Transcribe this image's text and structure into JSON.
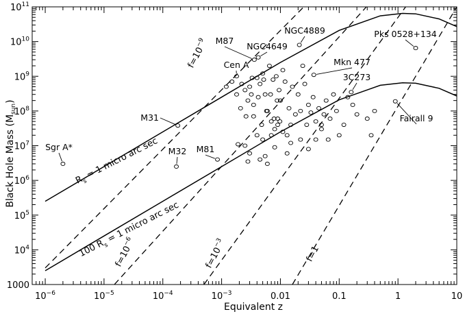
{
  "chart_data": {
    "type": "scatter",
    "xlabel": "Equivalent z",
    "ylabel": {
      "main": "Black Hole Mass (M",
      "sub": "sun",
      "end": ")"
    },
    "xscale": "log",
    "yscale": "log",
    "xlim": [
      6e-07,
      10
    ],
    "ylim": [
      1000,
      100000000000.0
    ],
    "grid": false,
    "x_ticks": [
      {
        "value": 1e-06,
        "base": "10",
        "exp": "−6"
      },
      {
        "value": 1e-05,
        "base": "10",
        "exp": "−5"
      },
      {
        "value": 0.0001,
        "base": "10",
        "exp": "−4"
      },
      {
        "value": 0.001,
        "base": "10",
        "exp": "−3"
      },
      {
        "value": 0.01,
        "text": "0.01"
      },
      {
        "value": 0.1,
        "text": "0.1"
      },
      {
        "value": 1,
        "text": "1"
      },
      {
        "value": 10,
        "text": "10"
      }
    ],
    "y_ticks": [
      {
        "value": 1000,
        "text": "1000"
      },
      {
        "value": 10000.0,
        "base": "10",
        "exp": "4"
      },
      {
        "value": 100000.0,
        "base": "10",
        "exp": "5"
      },
      {
        "value": 1000000.0,
        "base": "10",
        "exp": "6"
      },
      {
        "value": 10000000.0,
        "base": "10",
        "exp": "7"
      },
      {
        "value": 100000000.0,
        "base": "10",
        "exp": "8"
      },
      {
        "value": 1000000000.0,
        "base": "10",
        "exp": "9"
      },
      {
        "value": 10000000000.0,
        "base": "10",
        "exp": "10"
      },
      {
        "value": 100000000000.0,
        "base": "10",
        "exp": "11"
      }
    ],
    "solid_curves": [
      {
        "label_parts": [
          "R",
          "s",
          " = 1 micro arc sec"
        ],
        "points": [
          [
            1e-06,
            250000.0
          ],
          [
            1e-05,
            2500000.0
          ],
          [
            0.0001,
            25000000.0
          ],
          [
            0.001,
            250000000.0
          ],
          [
            0.01,
            2500000000.0
          ],
          [
            0.1,
            21000000000.0
          ],
          [
            0.5,
            55000000000.0
          ],
          [
            1.2,
            65000000000.0
          ],
          [
            2,
            63000000000.0
          ],
          [
            5,
            45000000000.0
          ],
          [
            10,
            27000000000.0
          ]
        ]
      },
      {
        "label_parts": [
          "100 R",
          "s",
          " = 1 micro arc sec"
        ],
        "points": [
          [
            1e-06,
            2500.0
          ],
          [
            1e-05,
            25000.0
          ],
          [
            0.0001,
            250000.0
          ],
          [
            0.001,
            2500000.0
          ],
          [
            0.01,
            25000000.0
          ],
          [
            0.1,
            210000000.0
          ],
          [
            0.5,
            550000000.0
          ],
          [
            1.2,
            650000000.0
          ],
          [
            2,
            630000000.0
          ],
          [
            5,
            450000000.0
          ],
          [
            10,
            270000000.0
          ]
        ]
      }
    ],
    "dashed_lines": [
      {
        "label": "f=10",
        "exp": "−9",
        "x0": 1e-06,
        "y0": 3000.0,
        "x1": 0.025,
        "y1": 100000000000.0
      },
      {
        "label": "f=10",
        "exp": "−6",
        "x0": 1.5e-05,
        "y0": 1000.0,
        "x1": 0.29,
        "y1": 100000000000.0
      },
      {
        "label": "f=10",
        "exp": "−3",
        "x0": 0.0005,
        "y0": 1000.0,
        "x1": 1.35,
        "y1": 100000000000.0
      },
      {
        "label": "f=1",
        "exp": "",
        "x0": 0.016,
        "y0": 1000.0,
        "x1": 10,
        "y1": 100000000000.0
      }
    ],
    "labeled_objects": [
      {
        "name": "Sgr A*",
        "x": 2e-06,
        "y": 3000000.0
      },
      {
        "name": "M31",
        "x": 0.00018,
        "y": 38000000.0
      },
      {
        "name": "M32",
        "x": 0.00017,
        "y": 2500000.0
      },
      {
        "name": "M81",
        "x": 0.00085,
        "y": 4000000.0
      },
      {
        "name": "Cen A",
        "x": 0.0018,
        "y": 1000000000.0
      },
      {
        "name": "M87",
        "x": 0.0036,
        "y": 3000000000.0
      },
      {
        "name": "NGC4649",
        "x": 0.0042,
        "y": 3500000000.0
      },
      {
        "name": "NGC4889",
        "x": 0.021,
        "y": 8000000000.0
      },
      {
        "name": "Mkn 477",
        "x": 0.037,
        "y": 1100000000.0
      },
      {
        "name": "3C273",
        "x": 0.16,
        "y": 350000000.0
      },
      {
        "name": "Pks 0528+134",
        "x": 2.0,
        "y": 6500000000.0
      },
      {
        "name": "Fairall 9",
        "x": 0.9,
        "y": 190000000.0
      }
    ],
    "points": [
      [
        0.0012,
        500000000.0
      ],
      [
        0.0015,
        700000000.0
      ],
      [
        0.0022,
        600000000.0
      ],
      [
        0.0025,
        400000000.0
      ],
      [
        0.0028,
        200000000.0
      ],
      [
        0.003,
        500000000.0
      ],
      [
        0.0032,
        300000000.0
      ],
      [
        0.0035,
        150000000.0
      ],
      [
        0.004,
        900000000.0
      ],
      [
        0.0045,
        600000000.0
      ],
      [
        0.005,
        1200000000.0
      ],
      [
        0.0055,
        300000000.0
      ],
      [
        0.006,
        100000000.0
      ],
      [
        0.0065,
        2000000000.0
      ],
      [
        0.007,
        50000000.0
      ],
      [
        0.0075,
        800000000.0
      ],
      [
        0.008,
        30000000.0
      ],
      [
        0.0085,
        1000000000.0
      ],
      [
        0.009,
        60000000.0
      ],
      [
        0.0095,
        400000000.0
      ],
      [
        0.01,
        200000000.0
      ],
      [
        0.011,
        1500000000.0
      ],
      [
        0.012,
        700000000.0
      ],
      [
        0.013,
        20000000.0
      ],
      [
        0.014,
        120000000.0
      ],
      [
        0.015,
        40000000.0
      ],
      [
        0.016,
        500000000.0
      ],
      [
        0.018,
        80000000.0
      ],
      [
        0.02,
        300000000.0
      ],
      [
        0.022,
        100000000.0
      ],
      [
        0.024,
        2000000000.0
      ],
      [
        0.026,
        600000000.0
      ],
      [
        0.028,
        40000000.0
      ],
      [
        0.03,
        150000000.0
      ],
      [
        0.033,
        90000000.0
      ],
      [
        0.036,
        250000000.0
      ],
      [
        0.04,
        50000000.0
      ],
      [
        0.045,
        120000000.0
      ],
      [
        0.05,
        30000000.0
      ],
      [
        0.055,
        80000000.0
      ],
      [
        0.06,
        200000000.0
      ],
      [
        0.065,
        15000000.0
      ],
      [
        0.07,
        60000000.0
      ],
      [
        0.08,
        300000000.0
      ],
      [
        0.09,
        100000000.0
      ],
      [
        0.1,
        20000000.0
      ],
      [
        0.12,
        40000000.0
      ],
      [
        0.14,
        250000000.0
      ],
      [
        0.17,
        150000000.0
      ],
      [
        0.2,
        80000000.0
      ],
      [
        0.3,
        60000000.0
      ],
      [
        0.35,
        20000000.0
      ],
      [
        0.4,
        100000000.0
      ],
      [
        0.0025,
        10000000.0
      ],
      [
        0.003,
        6000000.0
      ],
      [
        0.004,
        20000000.0
      ],
      [
        0.0045,
        4000000.0
      ],
      [
        0.005,
        15000000.0
      ],
      [
        0.0055,
        5000000.0
      ],
      [
        0.006,
        3000000.0
      ],
      [
        0.007,
        20000000.0
      ],
      [
        0.008,
        9000000.0
      ],
      [
        0.009,
        40000000.0
      ],
      [
        0.0028,
        3500000.0
      ],
      [
        0.0019,
        11000000.0
      ],
      [
        0.011,
        25000000.0
      ],
      [
        0.013,
        6000000.0
      ],
      [
        0.015,
        12000000.0
      ],
      [
        0.022,
        15000000.0
      ],
      [
        0.03,
        8000000.0
      ],
      [
        0.04,
        15000000.0
      ],
      [
        0.05,
        40000000.0
      ],
      [
        0.0035,
        70000000.0
      ],
      [
        0.0042,
        250000000.0
      ],
      [
        0.0048,
        40000000.0
      ],
      [
        0.0058,
        100000000.0
      ],
      [
        0.0068,
        300000000.0
      ],
      [
        0.0078,
        60000000.0
      ],
      [
        0.0088,
        200000000.0
      ],
      [
        0.0098,
        50000000.0
      ],
      [
        0.0018,
        300000000.0
      ],
      [
        0.0021,
        120000000.0
      ],
      [
        0.0026,
        70000000.0
      ],
      [
        0.0033,
        900000000.0
      ],
      [
        0.0052,
        800000000.0
      ]
    ]
  }
}
